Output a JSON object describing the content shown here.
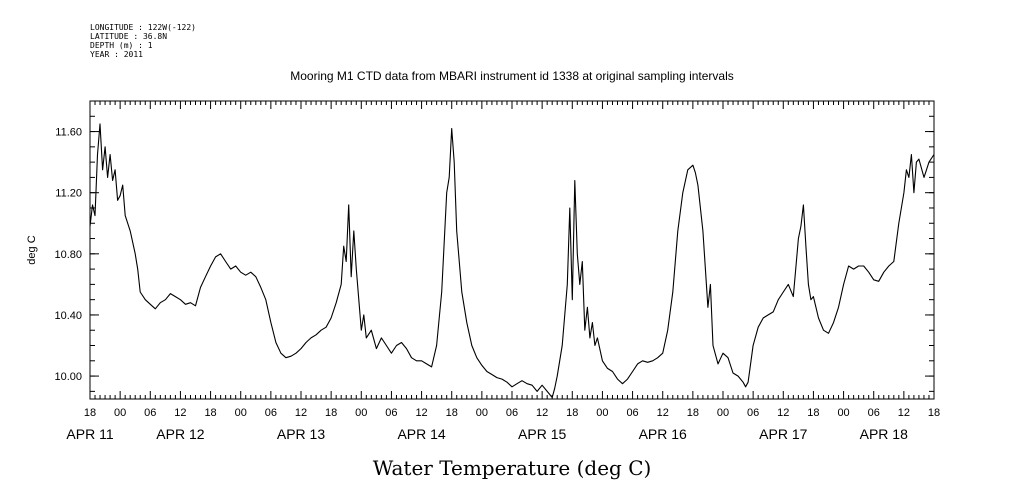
{
  "header": {
    "longitude": "LONGITUDE : 122W(-122)",
    "latitude": "LATITUDE : 36.8N",
    "depth": "DEPTH (m) : 1",
    "year": "YEAR : 2011"
  },
  "chart_data": {
    "type": "line",
    "title": "Mooring M1 CTD data from MBARI instrument id 1338 at original sampling intervals",
    "xlabel": "Water Temperature (deg C)",
    "ylabel": "deg C",
    "ylim": [
      9.85,
      11.8
    ],
    "yticks": [
      "10.00",
      "10.40",
      "10.80",
      "11.20",
      "11.60"
    ],
    "xlim": [
      0,
      168
    ],
    "hour_tick_labels": [
      "18",
      "00",
      "06",
      "12",
      "18",
      "00",
      "06",
      "12",
      "18",
      "00",
      "06",
      "12",
      "18",
      "00",
      "06",
      "12",
      "18",
      "00",
      "06",
      "12",
      "18",
      "00",
      "06",
      "12",
      "18",
      "00",
      "06",
      "12",
      "18"
    ],
    "day_labels": [
      {
        "text": "APR 11",
        "hour": 0
      },
      {
        "text": "APR 12",
        "hour": 18
      },
      {
        "text": "APR 13",
        "hour": 42
      },
      {
        "text": "APR 14",
        "hour": 66
      },
      {
        "text": "APR 15",
        "hour": 90
      },
      {
        "text": "APR 16",
        "hour": 114
      },
      {
        "text": "APR 17",
        "hour": 138
      },
      {
        "text": "APR 18",
        "hour": 158
      }
    ],
    "x_units": "hours since APR 11 18:00",
    "series": [
      {
        "values": [
          [
            0,
            10.98
          ],
          [
            0.5,
            11.12
          ],
          [
            1,
            11.05
          ],
          [
            1.5,
            11.45
          ],
          [
            2,
            11.65
          ],
          [
            2.5,
            11.35
          ],
          [
            3,
            11.5
          ],
          [
            3.5,
            11.3
          ],
          [
            4,
            11.45
          ],
          [
            4.5,
            11.28
          ],
          [
            5,
            11.35
          ],
          [
            5.5,
            11.15
          ],
          [
            6,
            11.18
          ],
          [
            6.5,
            11.25
          ],
          [
            7,
            11.05
          ],
          [
            8,
            10.95
          ],
          [
            9,
            10.8
          ],
          [
            9.5,
            10.7
          ],
          [
            10,
            10.55
          ],
          [
            11,
            10.5
          ],
          [
            12,
            10.47
          ],
          [
            13,
            10.44
          ],
          [
            14,
            10.48
          ],
          [
            15,
            10.5
          ],
          [
            16,
            10.54
          ],
          [
            17,
            10.52
          ],
          [
            18,
            10.5
          ],
          [
            19,
            10.47
          ],
          [
            20,
            10.48
          ],
          [
            21,
            10.46
          ],
          [
            22,
            10.58
          ],
          [
            23,
            10.65
          ],
          [
            24,
            10.72
          ],
          [
            25,
            10.78
          ],
          [
            26,
            10.8
          ],
          [
            27,
            10.75
          ],
          [
            28,
            10.7
          ],
          [
            29,
            10.72
          ],
          [
            30,
            10.68
          ],
          [
            31,
            10.66
          ],
          [
            32,
            10.68
          ],
          [
            33,
            10.65
          ],
          [
            34,
            10.58
          ],
          [
            35,
            10.5
          ],
          [
            36,
            10.35
          ],
          [
            37,
            10.22
          ],
          [
            38,
            10.15
          ],
          [
            39,
            10.12
          ],
          [
            40,
            10.13
          ],
          [
            41,
            10.15
          ],
          [
            42,
            10.18
          ],
          [
            43,
            10.22
          ],
          [
            44,
            10.25
          ],
          [
            45,
            10.27
          ],
          [
            46,
            10.3
          ],
          [
            47,
            10.32
          ],
          [
            48,
            10.38
          ],
          [
            49,
            10.48
          ],
          [
            50,
            10.6
          ],
          [
            50.5,
            10.85
          ],
          [
            51,
            10.75
          ],
          [
            51.5,
            11.12
          ],
          [
            52,
            10.65
          ],
          [
            52.5,
            10.95
          ],
          [
            53,
            10.7
          ],
          [
            53.5,
            10.5
          ],
          [
            54,
            10.3
          ],
          [
            54.5,
            10.4
          ],
          [
            55,
            10.25
          ],
          [
            56,
            10.3
          ],
          [
            57,
            10.18
          ],
          [
            58,
            10.25
          ],
          [
            59,
            10.2
          ],
          [
            60,
            10.15
          ],
          [
            61,
            10.2
          ],
          [
            62,
            10.22
          ],
          [
            63,
            10.18
          ],
          [
            64,
            10.12
          ],
          [
            65,
            10.1
          ],
          [
            66,
            10.1
          ],
          [
            67,
            10.08
          ],
          [
            68,
            10.06
          ],
          [
            69,
            10.2
          ],
          [
            70,
            10.55
          ],
          [
            71,
            11.2
          ],
          [
            71.5,
            11.3
          ],
          [
            72,
            11.62
          ],
          [
            72.5,
            11.4
          ],
          [
            73,
            10.95
          ],
          [
            74,
            10.55
          ],
          [
            75,
            10.35
          ],
          [
            76,
            10.2
          ],
          [
            77,
            10.12
          ],
          [
            78,
            10.07
          ],
          [
            79,
            10.03
          ],
          [
            80,
            10.01
          ],
          [
            81,
            9.99
          ],
          [
            82,
            9.98
          ],
          [
            83,
            9.96
          ],
          [
            84,
            9.93
          ],
          [
            85,
            9.95
          ],
          [
            86,
            9.97
          ],
          [
            87,
            9.95
          ],
          [
            88,
            9.94
          ],
          [
            89,
            9.9
          ],
          [
            90,
            9.94
          ],
          [
            91,
            9.9
          ],
          [
            92,
            9.86
          ],
          [
            92.5,
            9.92
          ],
          [
            93,
            10.0
          ],
          [
            94,
            10.2
          ],
          [
            95,
            10.6
          ],
          [
            95.5,
            11.1
          ],
          [
            96,
            10.5
          ],
          [
            96.5,
            11.28
          ],
          [
            97,
            10.8
          ],
          [
            97.5,
            10.6
          ],
          [
            98,
            10.75
          ],
          [
            98.5,
            10.3
          ],
          [
            99,
            10.45
          ],
          [
            99.5,
            10.25
          ],
          [
            100,
            10.35
          ],
          [
            100.5,
            10.2
          ],
          [
            101,
            10.25
          ],
          [
            102,
            10.1
          ],
          [
            103,
            10.05
          ],
          [
            104,
            10.03
          ],
          [
            105,
            9.98
          ],
          [
            106,
            9.95
          ],
          [
            107,
            9.98
          ],
          [
            108,
            10.03
          ],
          [
            109,
            10.08
          ],
          [
            110,
            10.1
          ],
          [
            111,
            10.09
          ],
          [
            112,
            10.1
          ],
          [
            113,
            10.12
          ],
          [
            114,
            10.15
          ],
          [
            115,
            10.3
          ],
          [
            116,
            10.55
          ],
          [
            117,
            10.95
          ],
          [
            118,
            11.2
          ],
          [
            119,
            11.35
          ],
          [
            120,
            11.38
          ],
          [
            120.5,
            11.33
          ],
          [
            121,
            11.25
          ],
          [
            122,
            10.95
          ],
          [
            123,
            10.45
          ],
          [
            123.5,
            10.6
          ],
          [
            124,
            10.2
          ],
          [
            125,
            10.08
          ],
          [
            126,
            10.15
          ],
          [
            127,
            10.12
          ],
          [
            128,
            10.02
          ],
          [
            129,
            10.0
          ],
          [
            130,
            9.96
          ],
          [
            130.5,
            9.93
          ],
          [
            131,
            9.96
          ],
          [
            132,
            10.2
          ],
          [
            133,
            10.32
          ],
          [
            134,
            10.38
          ],
          [
            135,
            10.4
          ],
          [
            136,
            10.42
          ],
          [
            137,
            10.5
          ],
          [
            138,
            10.55
          ],
          [
            139,
            10.6
          ],
          [
            140,
            10.52
          ],
          [
            141,
            10.9
          ],
          [
            141.5,
            10.98
          ],
          [
            142,
            11.12
          ],
          [
            142.5,
            10.85
          ],
          [
            143,
            10.6
          ],
          [
            143.5,
            10.5
          ],
          [
            144,
            10.52
          ],
          [
            145,
            10.38
          ],
          [
            146,
            10.3
          ],
          [
            147,
            10.28
          ],
          [
            148,
            10.35
          ],
          [
            149,
            10.45
          ],
          [
            150,
            10.6
          ],
          [
            151,
            10.72
          ],
          [
            152,
            10.7
          ],
          [
            153,
            10.72
          ],
          [
            154,
            10.72
          ],
          [
            155,
            10.68
          ],
          [
            156,
            10.63
          ],
          [
            157,
            10.62
          ],
          [
            158,
            10.68
          ],
          [
            159,
            10.72
          ],
          [
            160,
            10.75
          ],
          [
            161,
            11.0
          ],
          [
            162,
            11.2
          ],
          [
            162.5,
            11.35
          ],
          [
            163,
            11.3
          ],
          [
            163.5,
            11.45
          ],
          [
            164,
            11.2
          ],
          [
            164.5,
            11.4
          ],
          [
            165,
            11.42
          ],
          [
            166,
            11.3
          ],
          [
            167,
            11.4
          ],
          [
            168,
            11.45
          ]
        ]
      }
    ]
  }
}
